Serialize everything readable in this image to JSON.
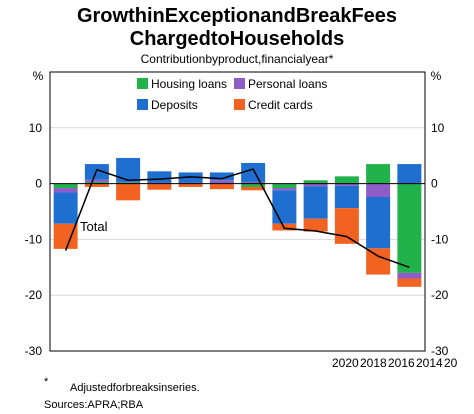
{
  "chart_data": {
    "type": "bar",
    "title_line1": "GrowthinExceptionandBreakFees",
    "title_line2": "ChargedtoHouseholds",
    "subtitle": "Contributionbyproduct,financialyear*",
    "unit_left": "%",
    "unit_right": "%",
    "ylim": [
      -30,
      20
    ],
    "yticks": [
      -30,
      -20,
      -10,
      0,
      10
    ],
    "x_tick_labels": [
      "2020",
      "2018",
      "2016",
      "2014",
      "20"
    ],
    "series": [
      {
        "name": "Housing loans",
        "color": "#22b24c",
        "values": [
          -0.8,
          0.3,
          0.2,
          0.1,
          0.1,
          0.1,
          -0.6,
          -0.8,
          0.6,
          1.3,
          3.5,
          -16.0
        ]
      },
      {
        "name": "Personal loans",
        "color": "#8e5dc8",
        "values": [
          -0.8,
          0.4,
          0.1,
          0.1,
          0.1,
          0.5,
          0.3,
          -0.4,
          -0.5,
          -0.4,
          -2.4,
          -1.0
        ]
      },
      {
        "name": "Deposits",
        "color": "#1f6fd1",
        "values": [
          -5.6,
          2.8,
          4.3,
          2.0,
          1.8,
          1.4,
          3.4,
          -6.0,
          -5.8,
          -4.0,
          -9.2,
          3.5
        ]
      },
      {
        "name": "Credit cards",
        "color": "#f26322",
        "values": [
          -4.5,
          -0.6,
          -3.0,
          -1.1,
          -0.6,
          -1.0,
          -0.6,
          -1.2,
          -2.3,
          -6.4,
          -4.7,
          -1.5
        ]
      }
    ],
    "total": {
      "name": "Total",
      "values": [
        -12.0,
        2.5,
        0.6,
        0.8,
        1.2,
        0.9,
        2.6,
        -8.0,
        -8.5,
        -9.5,
        -13.0,
        -15.0
      ]
    },
    "legend": [
      {
        "label": "Housing loans",
        "color": "#22b24c"
      },
      {
        "label": "Personal loans",
        "color": "#8e5dc8"
      },
      {
        "label": "Deposits",
        "color": "#1f6fd1"
      },
      {
        "label": "Credit cards",
        "color": "#f26322"
      }
    ],
    "annotation": "Total",
    "footnote_marker": "*",
    "footnote_text": "Adjustedforbreaksinseries.",
    "sources": "Sources:APRA;RBA"
  }
}
